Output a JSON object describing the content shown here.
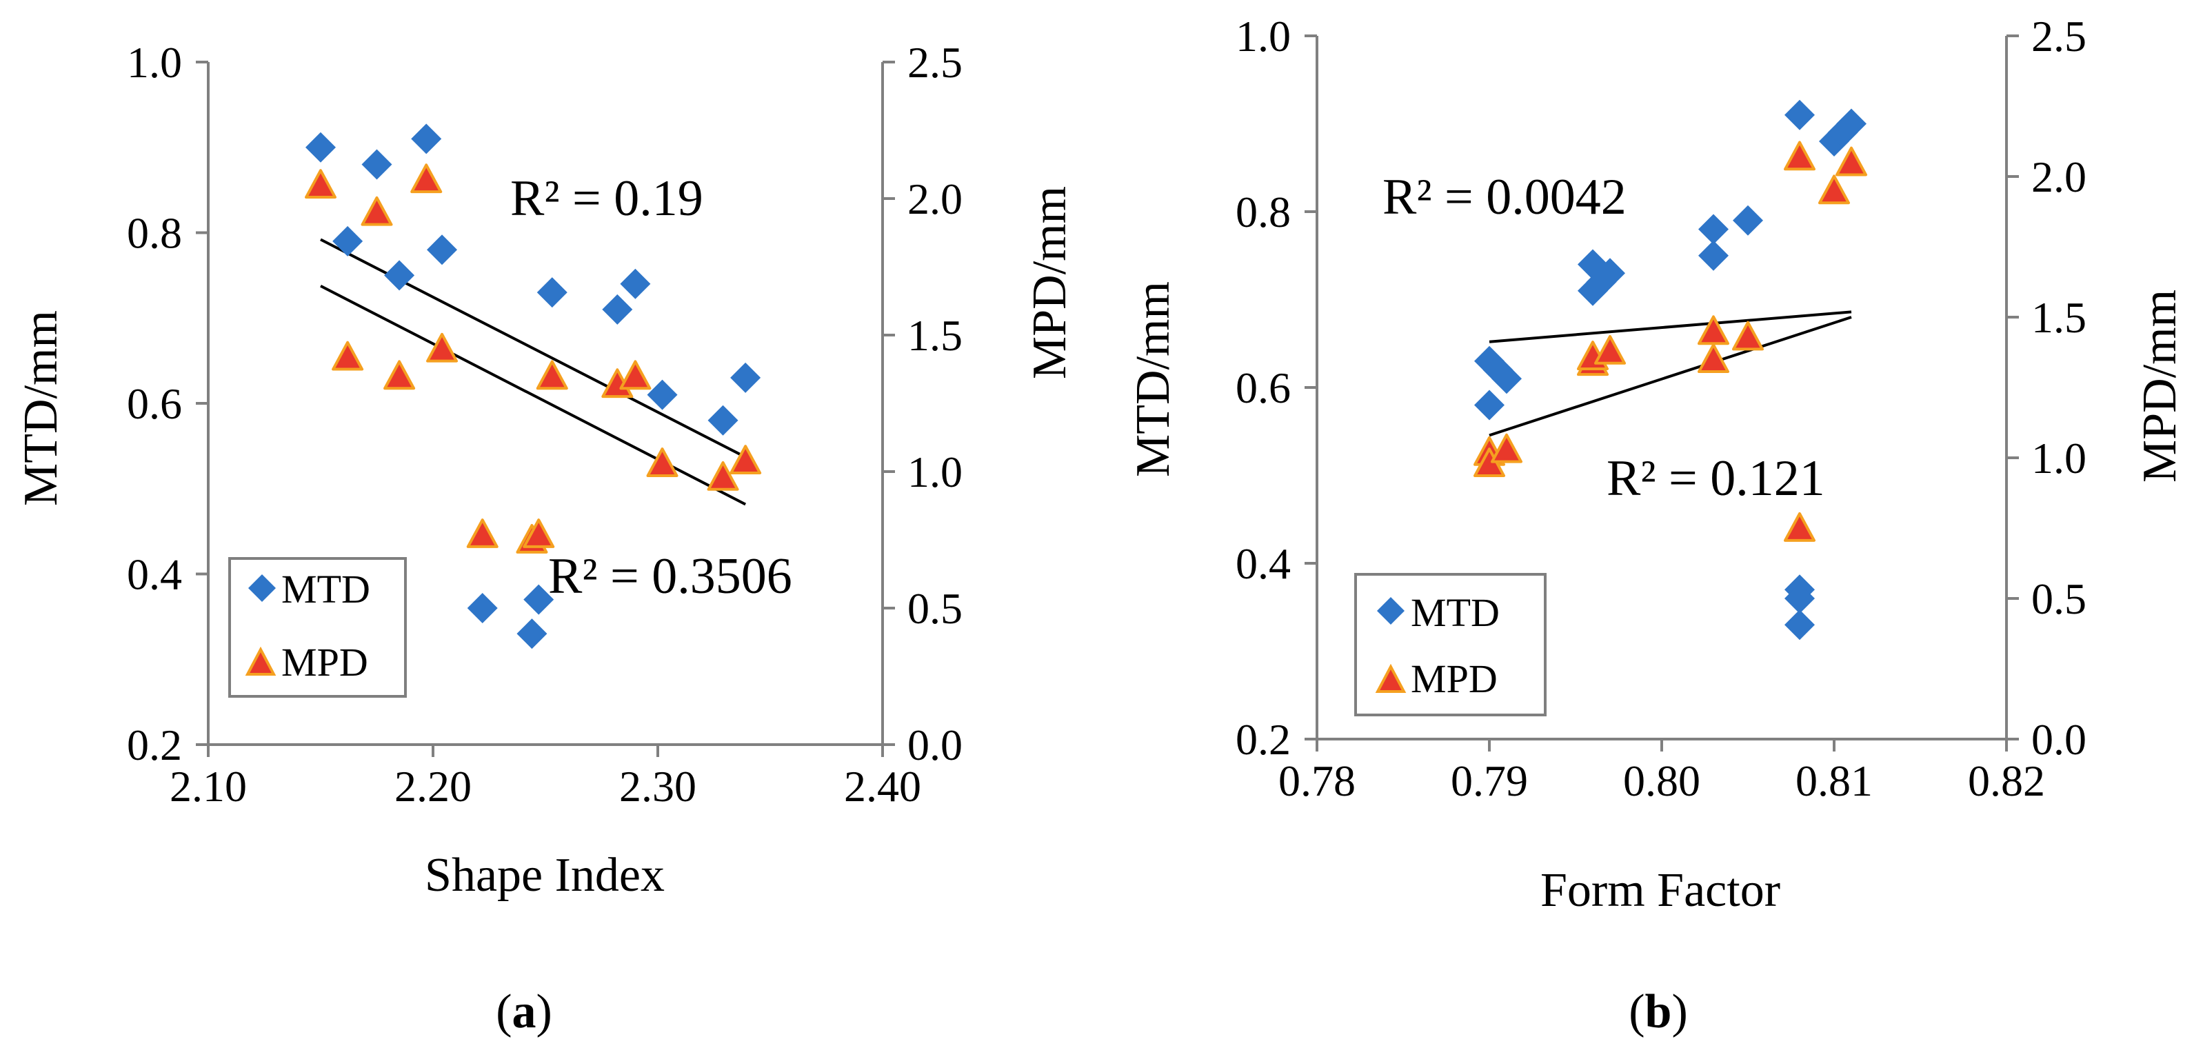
{
  "chart_data": [
    {
      "type": "scatter",
      "panel_label": "a",
      "xlabel": "Shape Index",
      "ylabel_left": "MTD/mm",
      "ylabel_right": "MPD/mm",
      "xlim": [
        2.1,
        2.4
      ],
      "ylim_left": [
        0.2,
        1.0
      ],
      "ylim_right": [
        0.0,
        2.5
      ],
      "xticks": [
        "2.10",
        "2.20",
        "2.30",
        "2.40"
      ],
      "yticks_left": [
        "0.2",
        "0.4",
        "0.6",
        "0.8",
        "1.0"
      ],
      "yticks_right": [
        "0.0",
        "0.5",
        "1.0",
        "1.5",
        "2.0",
        "2.5"
      ],
      "legend": [
        "MTD",
        "MPD"
      ],
      "legend_position": "bottom-left",
      "series": [
        {
          "name": "MTD",
          "marker": "diamond",
          "color": "#2E75C8",
          "axis": "left",
          "x": [
            2.15,
            2.162,
            2.175,
            2.185,
            2.197,
            2.204,
            2.222,
            2.244,
            2.247,
            2.253,
            2.282,
            2.29,
            2.302,
            2.329,
            2.339
          ],
          "y": [
            0.9,
            0.79,
            0.88,
            0.75,
            0.91,
            0.78,
            0.36,
            0.33,
            0.37,
            0.73,
            0.71,
            0.74,
            0.61,
            0.58,
            0.63
          ]
        },
        {
          "name": "MPD",
          "marker": "triangle",
          "color": "#E8382A",
          "edge": "#F5A020",
          "axis": "right",
          "x": [
            2.15,
            2.162,
            2.175,
            2.185,
            2.197,
            2.204,
            2.222,
            2.244,
            2.247,
            2.253,
            2.282,
            2.29,
            2.302,
            2.329,
            2.339
          ],
          "y": [
            2.05,
            1.42,
            1.95,
            1.35,
            2.07,
            1.45,
            0.77,
            0.75,
            0.77,
            1.35,
            1.32,
            1.35,
            1.03,
            0.98,
            1.04
          ]
        }
      ],
      "trendlines": [
        {
          "series": "MTD",
          "axis": "left",
          "x": [
            2.15,
            2.339
          ],
          "y": [
            0.792,
            0.537
          ]
        },
        {
          "series": "MPD",
          "axis": "right",
          "x": [
            2.15,
            2.339
          ],
          "y": [
            1.68,
            0.88
          ]
        }
      ],
      "annotations": [
        "R² = 0.19",
        "R² = 0.3506"
      ]
    },
    {
      "type": "scatter",
      "panel_label": "b",
      "xlabel": "Form Factor",
      "ylabel_left": "MTD/mm",
      "ylabel_right": "MPD/mm",
      "xlim": [
        0.78,
        0.82
      ],
      "ylim_left": [
        0.2,
        1.0
      ],
      "ylim_right": [
        0.0,
        2.5
      ],
      "xticks": [
        "0.78",
        "0.79",
        "0.80",
        "0.81",
        "0.82"
      ],
      "yticks_left": [
        "0.2",
        "0.4",
        "0.6",
        "0.8",
        "1.0"
      ],
      "yticks_right": [
        "0.0",
        "0.5",
        "1.0",
        "1.5",
        "2.0",
        "2.5"
      ],
      "legend": [
        "MTD",
        "MPD"
      ],
      "legend_position": "bottom-left",
      "series": [
        {
          "name": "MTD",
          "marker": "diamond",
          "color": "#2E75C8",
          "axis": "left",
          "x": [
            0.79,
            0.79,
            0.7905,
            0.791,
            0.796,
            0.796,
            0.7965,
            0.797,
            0.803,
            0.803,
            0.805,
            0.808,
            0.808,
            0.808,
            0.808,
            0.81,
            0.8105,
            0.811
          ],
          "y": [
            0.58,
            0.63,
            0.62,
            0.61,
            0.71,
            0.74,
            0.72,
            0.73,
            0.75,
            0.78,
            0.79,
            0.91,
            0.37,
            0.36,
            0.33,
            0.88,
            0.89,
            0.9
          ]
        },
        {
          "name": "MPD",
          "marker": "triangle",
          "color": "#E8382A",
          "edge": "#F5A020",
          "axis": "right",
          "x": [
            0.79,
            0.79,
            0.791,
            0.796,
            0.796,
            0.797,
            0.803,
            0.803,
            0.805,
            0.808,
            0.808,
            0.81,
            0.811
          ],
          "y": [
            1.02,
            0.98,
            1.03,
            1.34,
            1.36,
            1.38,
            1.35,
            1.45,
            1.43,
            0.75,
            2.07,
            1.95,
            2.05
          ]
        }
      ],
      "trendlines": [
        {
          "series": "MTD",
          "axis": "left",
          "x": [
            0.79,
            0.811
          ],
          "y": [
            0.652,
            0.686
          ]
        },
        {
          "series": "MPD",
          "axis": "right",
          "x": [
            0.79,
            0.811
          ],
          "y": [
            1.08,
            1.5
          ]
        }
      ],
      "annotations": [
        "R² = 0.0042",
        "R² = 0.121"
      ]
    }
  ]
}
